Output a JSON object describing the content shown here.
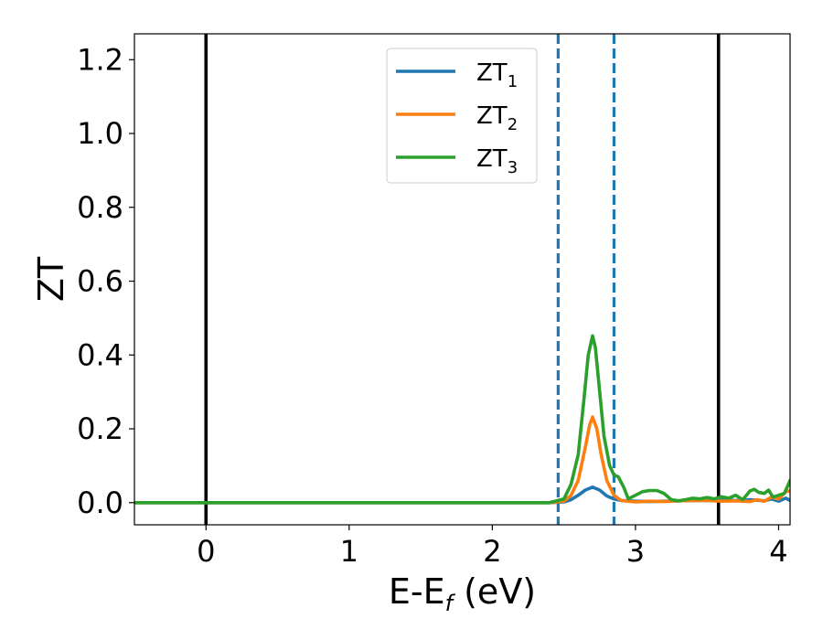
{
  "chart_data": {
    "type": "line",
    "xlabel": "E-E_f (eV)",
    "xlabel_parts": {
      "main": "E-E",
      "sub": "f",
      "rest": " (eV)"
    },
    "ylabel": "ZT",
    "xlim": [
      -0.5,
      4.08
    ],
    "ylim": [
      -0.06,
      1.27
    ],
    "xticks": [
      0,
      1,
      2,
      3,
      4
    ],
    "xtick_labels": [
      "0",
      "1",
      "2",
      "3",
      "4"
    ],
    "yticks": [
      0.0,
      0.2,
      0.4,
      0.6,
      0.8,
      1.0,
      1.2
    ],
    "ytick_labels": [
      "0.0",
      "0.2",
      "0.4",
      "0.6",
      "0.8",
      "1.0",
      "1.2"
    ],
    "grid": false,
    "legend_position": "top-center",
    "vlines": [
      {
        "x": 0.0,
        "style": "solid",
        "color": "#000000"
      },
      {
        "x": 3.58,
        "style": "solid",
        "color": "#000000"
      },
      {
        "x": 2.46,
        "style": "dashed",
        "color": "#1f77b4"
      },
      {
        "x": 2.85,
        "style": "dashed",
        "color": "#1f77b4"
      }
    ],
    "series": [
      {
        "name": "ZT_1",
        "label_main": "ZT",
        "label_sub": "1",
        "color": "#1f77b4",
        "x": [
          -0.5,
          2.4,
          2.5,
          2.55,
          2.6,
          2.65,
          2.7,
          2.75,
          2.8,
          2.85,
          2.9,
          3.0,
          3.1,
          3.2,
          3.3,
          3.4,
          3.5,
          3.6,
          3.7,
          3.8,
          3.9,
          3.95,
          4.0,
          4.05,
          4.08
        ],
        "y": [
          0.0,
          0.0,
          0.002,
          0.008,
          0.02,
          0.034,
          0.042,
          0.034,
          0.018,
          0.01,
          0.006,
          0.004,
          0.003,
          0.004,
          0.005,
          0.006,
          0.006,
          0.007,
          0.006,
          0.008,
          0.005,
          0.01,
          0.004,
          0.012,
          0.006
        ]
      },
      {
        "name": "ZT_2",
        "label_main": "ZT",
        "label_sub": "2",
        "color": "#ff7f0e",
        "x": [
          -0.5,
          2.4,
          2.5,
          2.55,
          2.6,
          2.65,
          2.68,
          2.7,
          2.73,
          2.76,
          2.8,
          2.85,
          2.9,
          2.95,
          3.0,
          3.1,
          3.2,
          3.3,
          3.4,
          3.5,
          3.6,
          3.7,
          3.8,
          3.85,
          3.9,
          3.95,
          4.0,
          4.05,
          4.08
        ],
        "y": [
          0.0,
          0.0,
          0.004,
          0.02,
          0.06,
          0.15,
          0.21,
          0.232,
          0.2,
          0.13,
          0.06,
          0.02,
          0.006,
          0.004,
          0.002,
          0.004,
          0.003,
          0.005,
          0.006,
          0.006,
          0.004,
          0.005,
          0.003,
          0.008,
          0.004,
          0.015,
          0.01,
          0.03,
          0.032
        ]
      },
      {
        "name": "ZT_3",
        "label_main": "ZT",
        "label_sub": "3",
        "color": "#2ca02c",
        "x": [
          -0.5,
          2.4,
          2.5,
          2.55,
          2.6,
          2.64,
          2.67,
          2.7,
          2.72,
          2.75,
          2.78,
          2.82,
          2.85,
          2.88,
          2.92,
          2.95,
          3.0,
          3.05,
          3.1,
          3.15,
          3.2,
          3.25,
          3.3,
          3.35,
          3.4,
          3.45,
          3.5,
          3.55,
          3.6,
          3.65,
          3.7,
          3.75,
          3.8,
          3.83,
          3.86,
          3.9,
          3.93,
          3.96,
          4.0,
          4.04,
          4.08
        ],
        "y": [
          0.0,
          0.0,
          0.01,
          0.05,
          0.13,
          0.28,
          0.4,
          0.452,
          0.42,
          0.3,
          0.18,
          0.1,
          0.075,
          0.07,
          0.04,
          0.01,
          0.02,
          0.03,
          0.033,
          0.033,
          0.025,
          0.008,
          0.005,
          0.008,
          0.012,
          0.01,
          0.014,
          0.01,
          0.016,
          0.012,
          0.02,
          0.008,
          0.032,
          0.036,
          0.028,
          0.025,
          0.034,
          0.015,
          0.02,
          0.025,
          0.06
        ]
      }
    ]
  }
}
